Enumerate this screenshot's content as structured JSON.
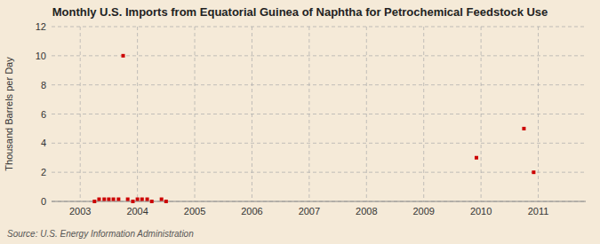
{
  "chart_data": {
    "type": "scatter",
    "title": "Monthly U.S. Imports from Equatorial Guinea of Naphtha for Petrochemical Feedstock Use",
    "ylabel": "Thousand Barrels per Day",
    "annotations": [
      "Source: U.S. Energy Information Administration"
    ],
    "x": [
      2003.25,
      2003.33,
      2003.42,
      2003.5,
      2003.58,
      2003.67,
      2003.75,
      2003.83,
      2003.92,
      2004.0,
      2004.08,
      2004.17,
      2004.25,
      2004.42,
      2004.5,
      2009.92,
      2010.75,
      2010.92
    ],
    "values": [
      0.0,
      0.15,
      0.15,
      0.15,
      0.15,
      0.15,
      10.0,
      0.15,
      0.0,
      0.15,
      0.15,
      0.15,
      0.0,
      0.15,
      0.0,
      3.0,
      5.0,
      2.0
    ],
    "color": "#cc0000",
    "marker": "square",
    "xlim": [
      2002.5,
      2011.83
    ],
    "xticks": [
      2003,
      2004,
      2005,
      2006,
      2007,
      2008,
      2009,
      2010,
      2011
    ],
    "ylim": [
      0,
      12
    ],
    "yticks": [
      0,
      2,
      4,
      6,
      8,
      10,
      12
    ],
    "grid": true
  }
}
